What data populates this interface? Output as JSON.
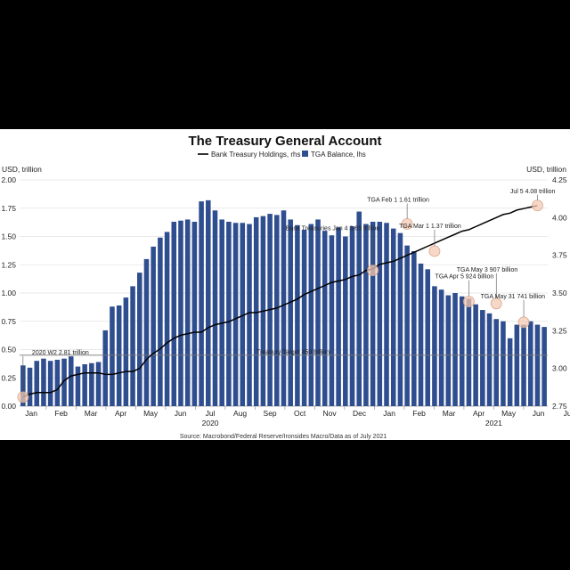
{
  "chart_data": {
    "type": "bar+line",
    "title": "The Treasury General Account",
    "source": "Source: Macrobond/Federal Reserve/Ironsides Macro/Data as of July 2021",
    "legend": [
      {
        "name": "Bank Treasury Holdings, rhs",
        "type": "line",
        "color": "#000000"
      },
      {
        "name": "TGA Balance, lhs",
        "type": "bar",
        "color": "#2f4e8f"
      }
    ],
    "left_axis": {
      "unit": "USD, trillion",
      "min": 0,
      "max": 2.0,
      "ticks": [
        "0.00",
        "0.25",
        "0.50",
        "0.75",
        "1.00",
        "1.25",
        "1.50",
        "1.75",
        "2.00"
      ]
    },
    "right_axis": {
      "unit": "USD, trillion",
      "min": 2.75,
      "max": 4.25,
      "ticks": [
        "2.75",
        "3.00",
        "3.25",
        "3.50",
        "3.75",
        "4.00",
        "4.25"
      ]
    },
    "x_months": [
      "Jan",
      "Feb",
      "Mar",
      "Apr",
      "May",
      "Jun",
      "Jul",
      "Aug",
      "Sep",
      "Oct",
      "Nov",
      "Dec",
      "Jan",
      "Feb",
      "Mar",
      "Apr",
      "May",
      "Jun",
      "Jul"
    ],
    "x_years": [
      "2020",
      "2021"
    ],
    "tga_balance_weekly": [
      0.36,
      0.34,
      0.4,
      0.42,
      0.4,
      0.41,
      0.42,
      0.44,
      0.35,
      0.37,
      0.38,
      0.39,
      0.67,
      0.88,
      0.89,
      0.96,
      1.06,
      1.18,
      1.3,
      1.41,
      1.49,
      1.54,
      1.63,
      1.64,
      1.65,
      1.63,
      1.81,
      1.82,
      1.73,
      1.65,
      1.63,
      1.62,
      1.62,
      1.61,
      1.67,
      1.68,
      1.7,
      1.69,
      1.73,
      1.65,
      1.6,
      1.56,
      1.61,
      1.65,
      1.55,
      1.51,
      1.58,
      1.5,
      1.59,
      1.72,
      1.61,
      1.63,
      1.63,
      1.62,
      1.57,
      1.53,
      1.42,
      1.37,
      1.26,
      1.21,
      1.06,
      1.03,
      0.98,
      1.0,
      0.97,
      0.95,
      0.9,
      0.85,
      0.82,
      0.77,
      0.75,
      0.6,
      0.72,
      0.72,
      0.75,
      0.72,
      0.7
    ],
    "bank_treasury_holdings_weekly": [
      2.81,
      2.83,
      2.84,
      2.84,
      2.84,
      2.86,
      2.92,
      2.95,
      2.96,
      2.97,
      2.97,
      2.97,
      2.96,
      2.96,
      2.97,
      2.98,
      2.98,
      3.0,
      3.06,
      3.1,
      3.13,
      3.17,
      3.2,
      3.22,
      3.23,
      3.24,
      3.24,
      3.27,
      3.29,
      3.3,
      3.31,
      3.33,
      3.35,
      3.37,
      3.37,
      3.38,
      3.39,
      3.4,
      3.42,
      3.44,
      3.46,
      3.49,
      3.51,
      3.53,
      3.55,
      3.57,
      3.58,
      3.59,
      3.61,
      3.62,
      3.65,
      3.66,
      3.69,
      3.7,
      3.71,
      3.73,
      3.75,
      3.77,
      3.79,
      3.81,
      3.83,
      3.85,
      3.87,
      3.89,
      3.91,
      3.92,
      3.94,
      3.96,
      3.98,
      4.0,
      4.02,
      4.03,
      4.05,
      4.06,
      4.07,
      4.08
    ],
    "reference_line": {
      "label": "Treasury Target 450 billion",
      "value": 0.45,
      "axis": "left"
    },
    "annotations": [
      {
        "label": "2020 W2 2.81 trillion",
        "axis": "right",
        "index": 0,
        "value": 2.81
      },
      {
        "label": "Bank Treasuries Jan 4 3.65 trillion",
        "axis": "right",
        "index": 51,
        "value": 3.65
      },
      {
        "label": "TGA Feb 1 1.61 trillion",
        "axis": "left",
        "index": 56,
        "value": 1.61
      },
      {
        "label": "TGA Mar 1 1.37 trillion",
        "axis": "left",
        "index": 60,
        "value": 1.37
      },
      {
        "label": "TGA May 3 907 billion",
        "axis": "left",
        "index": 69,
        "value": 0.907
      },
      {
        "label": "TGA Apr 5 924 billion",
        "axis": "left",
        "index": 65,
        "value": 0.924
      },
      {
        "label": "TGA May 31 741 billion",
        "axis": "left",
        "index": 73,
        "value": 0.741
      },
      {
        "label": "Jul 5 4.08 trillion",
        "axis": "right",
        "index": 75,
        "value": 4.08
      }
    ]
  }
}
